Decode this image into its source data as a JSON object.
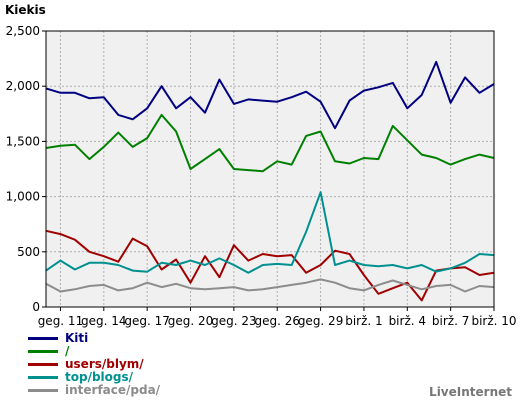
{
  "chart_data": {
    "type": "line",
    "title": "Kiekis",
    "ylim": [
      0,
      2500
    ],
    "yticks": [
      "0",
      "500",
      "1,000",
      "1,500",
      "2,000",
      "2,500"
    ],
    "ytick_values": [
      0,
      500,
      1000,
      1500,
      2000,
      2500
    ],
    "x": [
      "2024-05-10",
      "2024-05-11",
      "2024-05-12",
      "2024-05-13",
      "2024-05-14",
      "2024-05-15",
      "2024-05-16",
      "2024-05-17",
      "2024-05-18",
      "2024-05-19",
      "2024-05-20",
      "2024-05-21",
      "2024-05-22",
      "2024-05-23",
      "2024-05-24",
      "2024-05-25",
      "2024-05-26",
      "2024-05-27",
      "2024-05-28",
      "2024-05-29",
      "2024-05-30",
      "2024-05-31",
      "2024-06-01",
      "2024-06-02",
      "2024-06-03",
      "2024-06-04",
      "2024-06-05",
      "2024-06-06",
      "2024-06-07",
      "2024-06-08",
      "2024-06-09",
      "2024-06-10"
    ],
    "xtick_labels": [
      "geg. 11",
      "geg. 14",
      "geg. 17",
      "geg. 20",
      "geg. 23",
      "geg. 26",
      "geg. 29",
      "birž. 1",
      "birž. 4",
      "birž. 7",
      "birž. 10"
    ],
    "xtick_indices": [
      1,
      4,
      7,
      10,
      13,
      16,
      19,
      22,
      25,
      28,
      31
    ],
    "grid": true,
    "plot_background": "#f0f0f0",
    "grid_color": "#b0b0b0",
    "legend_position": "bottom-left",
    "series": [
      {
        "name": "Kiti",
        "color": "#000080",
        "values": [
          1980,
          1940,
          1940,
          1890,
          1900,
          1740,
          1700,
          1800,
          2000,
          1800,
          1900,
          1760,
          2060,
          1840,
          1880,
          1870,
          1860,
          1900,
          1950,
          1860,
          1620,
          1870,
          1960,
          1990,
          2030,
          1800,
          1920,
          2220,
          1850,
          2080,
          1940,
          2020
        ]
      },
      {
        "name": "/",
        "color": "#008000",
        "values": [
          1440,
          1460,
          1470,
          1340,
          1450,
          1580,
          1450,
          1530,
          1740,
          1590,
          1250,
          1340,
          1430,
          1250,
          1240,
          1230,
          1320,
          1290,
          1550,
          1590,
          1320,
          1300,
          1350,
          1340,
          1640,
          1510,
          1380,
          1350,
          1290,
          1340,
          1380,
          1350
        ]
      },
      {
        "name": "users/blym/",
        "color": "#a00000",
        "values": [
          690,
          660,
          610,
          500,
          460,
          410,
          620,
          550,
          340,
          430,
          220,
          460,
          270,
          560,
          420,
          480,
          460,
          470,
          310,
          380,
          510,
          480,
          290,
          120,
          170,
          220,
          60,
          330,
          350,
          360,
          290,
          310
        ]
      },
      {
        "name": "top/blogs/",
        "color": "#009090",
        "values": [
          330,
          420,
          340,
          400,
          400,
          380,
          330,
          320,
          400,
          380,
          420,
          380,
          440,
          380,
          310,
          380,
          390,
          380,
          680,
          1040,
          380,
          420,
          380,
          370,
          380,
          350,
          380,
          320,
          350,
          400,
          480,
          470
        ]
      },
      {
        "name": "interface/pda/",
        "color": "#8c8c8c",
        "values": [
          210,
          140,
          160,
          190,
          200,
          150,
          170,
          220,
          180,
          210,
          170,
          160,
          170,
          180,
          150,
          160,
          180,
          200,
          220,
          250,
          220,
          170,
          150,
          200,
          240,
          200,
          160,
          190,
          200,
          140,
          190,
          180
        ]
      }
    ]
  },
  "brand": "LiveInternet"
}
